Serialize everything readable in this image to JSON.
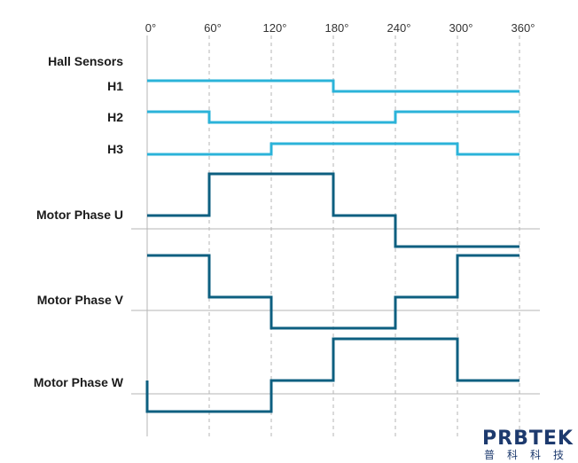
{
  "angle_ticks": [
    "0°",
    "60°",
    "120°",
    "180°",
    "240°",
    "300°",
    "360°"
  ],
  "hall_title": "Hall Sensors",
  "colors": {
    "hall": "#2bb3d9",
    "phase": "#0d5f80",
    "grid": "#b5b5b5",
    "text": "#1a1a1a",
    "logo": "#1d3a6e",
    "logo_accent": "#2bb3d9"
  },
  "hall_sensors": [
    {
      "label": "H1",
      "levels": [
        1,
        1,
        1,
        0,
        0,
        0
      ]
    },
    {
      "label": "H2",
      "levels": [
        1,
        0,
        0,
        0,
        1,
        1
      ]
    },
    {
      "label": "H3",
      "levels": [
        0,
        0,
        1,
        1,
        1,
        0
      ]
    }
  ],
  "motor_phases": [
    {
      "label": "Motor Phase U",
      "levels": [
        0,
        1,
        1,
        0,
        -1,
        -1
      ]
    },
    {
      "label": "Motor Phase V",
      "levels": [
        1,
        0,
        -1,
        -1,
        0,
        1
      ]
    },
    {
      "label": "Motor Phase W",
      "levels": [
        -1,
        -1,
        0,
        1,
        1,
        0
      ]
    }
  ],
  "logo": {
    "name": "PRBTEK",
    "subtitle": "普科科技"
  }
}
